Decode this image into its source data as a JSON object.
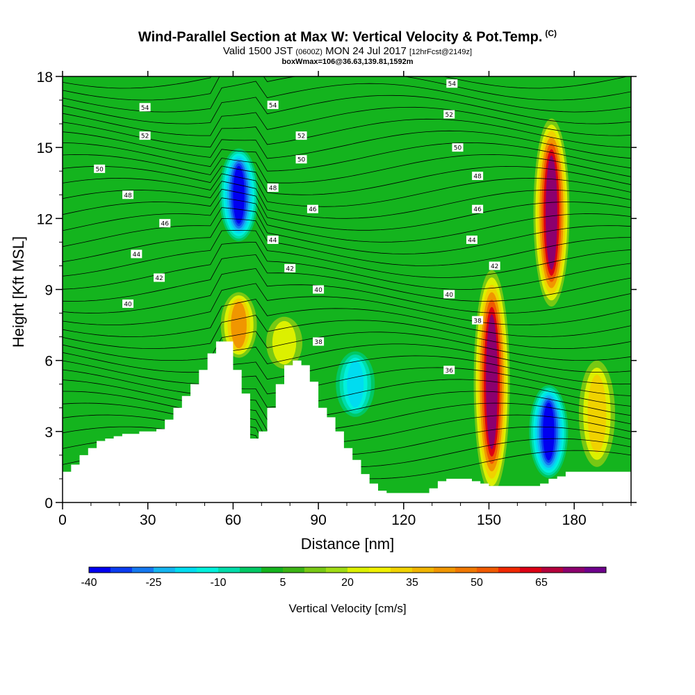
{
  "title": {
    "line1": "Wind-Parallel Section at Max W: Vertical Velocity & Pot.Temp.",
    "copyright": "(C)",
    "line2_a": "Valid 1500 JST",
    "line2_b": "(0600Z)",
    "line2_c": "MON 24 Jul 2017",
    "line2_d": "[12hrFcst@2149z]",
    "line3": "boxWmax=106@36.63,139.81,1592m"
  },
  "chart_data": {
    "type": "heatmap",
    "xlabel": "Distance [nm]",
    "ylabel": "Height [Kft MSL]",
    "xlim": [
      0,
      200
    ],
    "ylim": [
      0,
      18
    ],
    "xticks": [
      0,
      30,
      60,
      90,
      120,
      150,
      180
    ],
    "yticks": [
      0,
      3,
      6,
      9,
      12,
      15,
      18
    ],
    "colorbar": {
      "title": "Vertical Velocity [cm/s]",
      "tick_labels": [
        "-40",
        "-25",
        "-10",
        "5",
        "20",
        "35",
        "50",
        "65"
      ],
      "tick_values": [
        -40,
        -25,
        -10,
        5,
        20,
        35,
        50,
        65
      ],
      "min": -40,
      "max": 75,
      "step": 5,
      "colors": [
        "#0000f0",
        "#0a3cf0",
        "#1478f0",
        "#14b4f0",
        "#00dcf0",
        "#00f0dc",
        "#00dcaa",
        "#00c864",
        "#14b41e",
        "#3cb414",
        "#78c814",
        "#a0dc14",
        "#dcf000",
        "#f0f000",
        "#f0d200",
        "#f0b400",
        "#f09600",
        "#f07800",
        "#f05a00",
        "#f02800",
        "#dc0014",
        "#b4003c",
        "#8c006e",
        "#6e008c"
      ]
    },
    "terrain_profile": {
      "x": [
        0,
        3,
        6,
        9,
        12,
        15,
        18,
        21,
        24,
        27,
        30,
        33,
        36,
        39,
        42,
        45,
        48,
        51,
        54,
        57,
        60,
        63,
        66,
        69,
        72,
        75,
        78,
        81,
        84,
        87,
        90,
        93,
        96,
        99,
        102,
        105,
        108,
        111,
        114,
        117,
        120,
        123,
        126,
        129,
        132,
        135,
        138,
        141,
        144,
        147,
        150,
        153,
        156,
        159,
        162,
        165,
        168,
        171,
        174,
        177,
        180,
        183,
        186,
        189,
        192,
        195,
        198,
        200
      ],
      "height_kft": [
        1.3,
        1.6,
        2.0,
        2.3,
        2.6,
        2.7,
        2.8,
        2.9,
        2.9,
        3.0,
        3.0,
        3.1,
        3.5,
        4.0,
        4.5,
        5.0,
        5.6,
        6.3,
        6.8,
        6.8,
        5.6,
        4.6,
        2.7,
        3.0,
        4.0,
        5.0,
        5.8,
        6.0,
        5.8,
        5.1,
        4.0,
        3.6,
        3.0,
        2.3,
        1.8,
        1.2,
        0.8,
        0.5,
        0.4,
        0.4,
        0.4,
        0.4,
        0.4,
        0.6,
        0.9,
        1.0,
        1.0,
        1.0,
        0.9,
        0.8,
        0.7,
        0.7,
        0.7,
        0.7,
        0.7,
        0.7,
        0.8,
        1.0,
        1.1,
        1.3,
        1.3,
        1.3,
        1.3,
        1.3,
        1.3,
        1.3,
        1.3,
        1.3
      ]
    },
    "updraft_cores": [
      {
        "x": 151,
        "y_range_kft": [
          1.2,
          9.0
        ],
        "max_cms": 75
      },
      {
        "x": 172,
        "y_range_kft": [
          9.0,
          15.5
        ],
        "max_cms": 75
      },
      {
        "x": 62,
        "y_range_kft": [
          6.5,
          8.5
        ],
        "max_cms": 40
      },
      {
        "x": 188,
        "y_range_kft": [
          2.0,
          5.5
        ],
        "max_cms": 30
      },
      {
        "x": 78,
        "y_range_kft": [
          6.0,
          7.5
        ],
        "max_cms": 25
      }
    ],
    "downdraft_cores": [
      {
        "x": 171,
        "y_range_kft": [
          1.5,
          4.5
        ],
        "min_cms": -40
      },
      {
        "x": 62,
        "y_range_kft": [
          11.5,
          14.5
        ],
        "min_cms": -40
      },
      {
        "x": 103,
        "y_range_kft": [
          4.0,
          6.0
        ],
        "min_cms": -20
      }
    ],
    "contour_labels": [
      {
        "text": "54",
        "x": 29,
        "y": 16.7
      },
      {
        "text": "52",
        "x": 29,
        "y": 15.5
      },
      {
        "text": "50",
        "x": 13,
        "y": 14.1
      },
      {
        "text": "48",
        "x": 23,
        "y": 13.0
      },
      {
        "text": "46",
        "x": 36,
        "y": 11.8
      },
      {
        "text": "44",
        "x": 26,
        "y": 10.5
      },
      {
        "text": "42",
        "x": 34,
        "y": 9.5
      },
      {
        "text": "40",
        "x": 23,
        "y": 8.4
      },
      {
        "text": "54",
        "x": 74,
        "y": 16.8
      },
      {
        "text": "52",
        "x": 84,
        "y": 15.5
      },
      {
        "text": "50",
        "x": 84,
        "y": 14.5
      },
      {
        "text": "48",
        "x": 74,
        "y": 13.3
      },
      {
        "text": "46",
        "x": 88,
        "y": 12.4
      },
      {
        "text": "44",
        "x": 74,
        "y": 11.1
      },
      {
        "text": "42",
        "x": 80,
        "y": 9.9
      },
      {
        "text": "40",
        "x": 90,
        "y": 9.0
      },
      {
        "text": "38",
        "x": 90,
        "y": 6.8
      },
      {
        "text": "54",
        "x": 137,
        "y": 17.7
      },
      {
        "text": "52",
        "x": 136,
        "y": 16.4
      },
      {
        "text": "50",
        "x": 139,
        "y": 15.0
      },
      {
        "text": "48",
        "x": 146,
        "y": 13.8
      },
      {
        "text": "46",
        "x": 146,
        "y": 12.4
      },
      {
        "text": "44",
        "x": 144,
        "y": 11.1
      },
      {
        "text": "42",
        "x": 152,
        "y": 10.0
      },
      {
        "text": "40",
        "x": 136,
        "y": 8.8
      },
      {
        "text": "38",
        "x": 146,
        "y": 7.7
      },
      {
        "text": "36",
        "x": 136,
        "y": 5.6
      }
    ]
  }
}
